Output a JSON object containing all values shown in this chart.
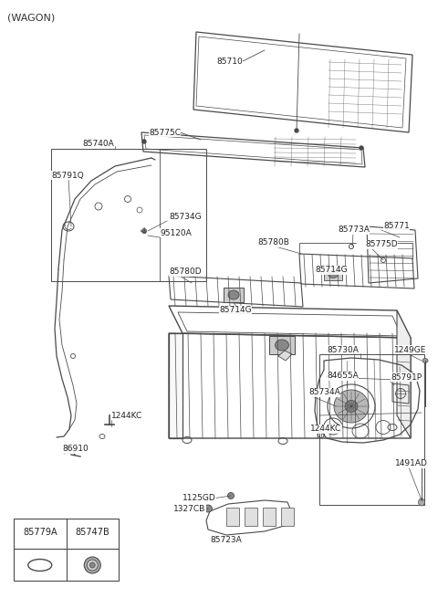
{
  "title": "(WAGON)",
  "bg_color": "#ffffff",
  "line_color": "#4a4a4a",
  "figsize": [
    4.8,
    6.55
  ],
  "dpi": 100,
  "table_labels": [
    "85779A",
    "85747B"
  ]
}
